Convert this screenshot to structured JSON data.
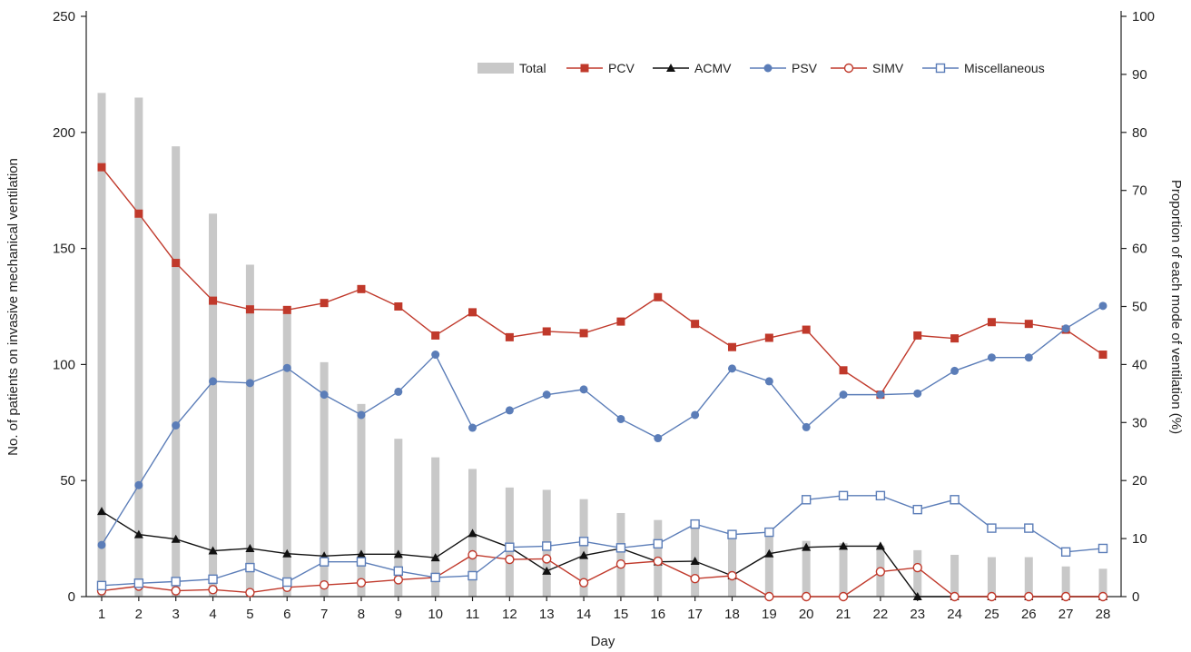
{
  "chart_data": {
    "type": "bar+line",
    "title": "",
    "xlabel": "Day",
    "ylabel_left": "No. of patients on invasive mechanical ventilation",
    "ylabel_right": "Proportion of each mode of ventilation (%)",
    "ylim_left": [
      0,
      250
    ],
    "ylim_right": [
      0,
      100
    ],
    "yticks_left": [
      "0",
      "50",
      "100",
      "150",
      "200",
      "250"
    ],
    "yticks_right": [
      "0",
      "10",
      "20",
      "30",
      "40",
      "50",
      "60",
      "70",
      "80",
      "90",
      "100"
    ],
    "x": [
      "1",
      "2",
      "3",
      "4",
      "5",
      "6",
      "7",
      "8",
      "9",
      "10",
      "11",
      "12",
      "13",
      "14",
      "15",
      "16",
      "17",
      "18",
      "19",
      "20",
      "21",
      "22",
      "23",
      "24",
      "25",
      "26",
      "27",
      "28"
    ],
    "bars": {
      "name": "Total",
      "axis": "left",
      "color": "#c8c8c8",
      "values": [
        217,
        215,
        194,
        165,
        143,
        122,
        101,
        83,
        68,
        60,
        55,
        47,
        46,
        42,
        36,
        33,
        32,
        28,
        26,
        24,
        23,
        22,
        20,
        18,
        17,
        17,
        13,
        12
      ]
    },
    "series": [
      {
        "name": "PCV",
        "axis": "right",
        "color": "#c0392b",
        "marker": "square",
        "values": [
          74,
          66,
          57.5,
          51,
          49.5,
          49.4,
          50.6,
          53,
          50,
          45,
          49,
          44.7,
          45.7,
          45.4,
          47.4,
          51.6,
          47,
          43,
          44.6,
          46,
          39,
          34.8,
          45,
          44.5,
          47.3,
          47,
          46,
          41.7
        ]
      },
      {
        "name": "ACMV",
        "axis": "right",
        "color": "#111111",
        "marker": "triangle",
        "values": [
          14.7,
          10.7,
          9.9,
          7.9,
          8.3,
          7.4,
          7.0,
          7.3,
          7.3,
          6.7,
          10.9,
          8.5,
          4.4,
          7.1,
          8.3,
          6.0,
          6.1,
          3.6,
          7.4,
          8.5,
          8.7,
          8.7,
          0,
          0,
          0,
          0,
          0,
          0
        ]
      },
      {
        "name": "PSV",
        "axis": "right",
        "color": "#5b7db8",
        "marker": "circle",
        "values": [
          8.9,
          19.2,
          29.5,
          37.1,
          36.8,
          39.4,
          34.8,
          31.3,
          35.3,
          41.7,
          29.1,
          32.1,
          34.8,
          35.7,
          30.6,
          27.3,
          31.3,
          39.3,
          37.1,
          29.2,
          34.8,
          34.8,
          35.0,
          38.9,
          41.2,
          41.2,
          46.2,
          50.1
        ]
      },
      {
        "name": "SIMV",
        "axis": "right",
        "color": "#c0392b",
        "marker": "circle-open",
        "values": [
          1.0,
          1.8,
          1.0,
          1.2,
          0.7,
          1.6,
          2.0,
          2.4,
          2.9,
          3.3,
          7.2,
          6.4,
          6.5,
          2.4,
          5.6,
          6.1,
          3.1,
          3.6,
          0,
          0,
          0,
          4.3,
          5.0,
          0,
          0,
          0,
          0,
          0
        ]
      },
      {
        "name": "Miscellaneous",
        "axis": "right",
        "color": "#5b7db8",
        "marker": "square-open",
        "values": [
          1.9,
          2.3,
          2.6,
          3.0,
          5.0,
          2.5,
          6.0,
          6.0,
          4.4,
          3.3,
          3.6,
          8.5,
          8.7,
          9.5,
          8.4,
          9.1,
          12.5,
          10.7,
          11.1,
          16.7,
          17.4,
          17.4,
          15.0,
          16.7,
          11.8,
          11.8,
          7.7,
          8.3
        ]
      }
    ],
    "legend": [
      "Total",
      "PCV",
      "ACMV",
      "PSV",
      "SIMV",
      "Miscellaneous"
    ],
    "legend_position": "top-right",
    "grid": false
  }
}
